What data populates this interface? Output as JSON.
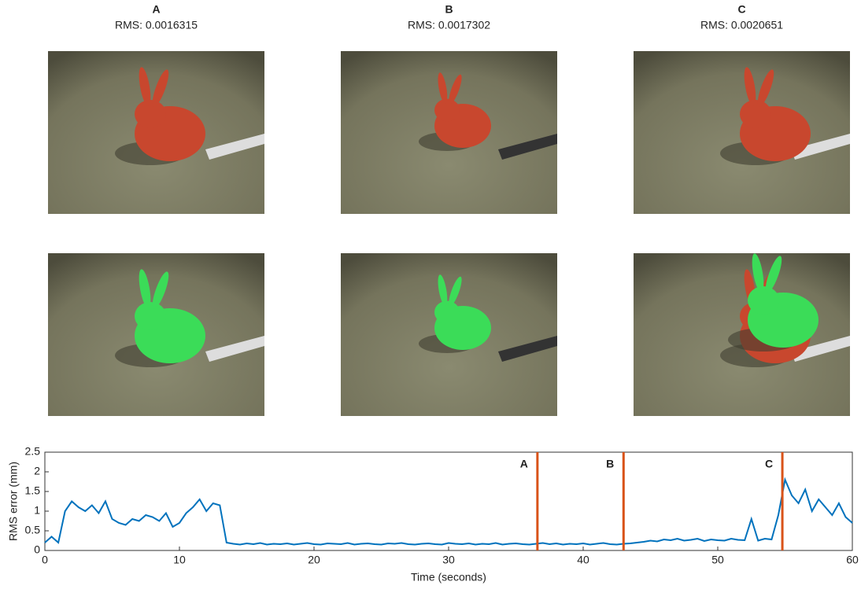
{
  "panels": [
    {
      "label": "A",
      "rms": "RMS: 0.0016315"
    },
    {
      "label": "B",
      "rms": "RMS: 0.0017302"
    },
    {
      "label": "C",
      "rms": "RMS: 0.0020651"
    }
  ],
  "chart_data": {
    "type": "line",
    "x_label": "Time (seconds)",
    "y_label": "RMS error (mm)",
    "xlim": [
      0,
      60
    ],
    "xticks": [
      0,
      10,
      20,
      30,
      40,
      50,
      60
    ],
    "ylim": [
      0,
      2.5
    ],
    "yticks": [
      0,
      0.5,
      1,
      1.5,
      2,
      2.5
    ],
    "x": [
      0,
      0.5,
      1,
      1.5,
      2,
      2.5,
      3,
      3.5,
      4,
      4.5,
      5,
      5.5,
      6,
      6.5,
      7,
      7.5,
      8,
      8.5,
      9,
      9.5,
      10,
      10.5,
      11,
      11.5,
      12,
      12.5,
      13,
      13.5,
      14,
      14.5,
      15,
      15.5,
      16,
      16.5,
      17,
      17.5,
      18,
      18.5,
      19,
      19.5,
      20,
      20.5,
      21,
      21.5,
      22,
      22.5,
      23,
      23.5,
      24,
      24.5,
      25,
      25.5,
      26,
      26.5,
      27,
      27.5,
      28,
      28.5,
      29,
      29.5,
      30,
      30.5,
      31,
      31.5,
      32,
      32.5,
      33,
      33.5,
      34,
      34.5,
      35,
      35.5,
      36,
      36.5,
      37,
      37.5,
      38,
      38.5,
      39,
      39.5,
      40,
      40.5,
      41,
      41.5,
      42,
      42.5,
      43,
      43.5,
      44,
      44.5,
      45,
      45.5,
      46,
      46.5,
      47,
      47.5,
      48,
      48.5,
      49,
      49.5,
      50,
      50.5,
      51,
      51.5,
      52,
      52.5,
      53,
      53.5,
      54,
      54.5,
      55,
      55.5,
      56,
      56.5,
      57,
      57.5,
      58,
      58.5,
      59,
      59.5,
      60
    ],
    "series": [
      {
        "color": "#0072bd",
        "values": [
          0.2,
          0.35,
          0.2,
          1.0,
          1.25,
          1.1,
          1.0,
          1.15,
          0.95,
          1.25,
          0.8,
          0.7,
          0.65,
          0.8,
          0.75,
          0.9,
          0.85,
          0.75,
          0.95,
          0.6,
          0.7,
          0.95,
          1.1,
          1.3,
          1.0,
          1.2,
          1.15,
          0.2,
          0.17,
          0.15,
          0.18,
          0.16,
          0.19,
          0.15,
          0.17,
          0.16,
          0.18,
          0.15,
          0.17,
          0.19,
          0.16,
          0.15,
          0.18,
          0.17,
          0.16,
          0.19,
          0.15,
          0.17,
          0.18,
          0.16,
          0.15,
          0.18,
          0.17,
          0.19,
          0.16,
          0.15,
          0.17,
          0.18,
          0.16,
          0.15,
          0.19,
          0.17,
          0.16,
          0.18,
          0.15,
          0.17,
          0.16,
          0.19,
          0.15,
          0.17,
          0.18,
          0.16,
          0.15,
          0.17,
          0.19,
          0.16,
          0.18,
          0.15,
          0.17,
          0.16,
          0.18,
          0.15,
          0.17,
          0.19,
          0.16,
          0.15,
          0.17,
          0.18,
          0.2,
          0.22,
          0.25,
          0.23,
          0.28,
          0.26,
          0.3,
          0.25,
          0.27,
          0.3,
          0.24,
          0.28,
          0.26,
          0.25,
          0.3,
          0.27,
          0.26,
          0.8,
          0.25,
          0.3,
          0.28,
          0.9,
          1.8,
          1.4,
          1.2,
          1.55,
          1.0,
          1.3,
          1.1,
          0.9,
          1.2,
          0.85,
          0.7
        ]
      }
    ],
    "markers": [
      {
        "label": "A",
        "x": 36.6
      },
      {
        "label": "B",
        "x": 43
      },
      {
        "label": "C",
        "x": 54.8
      }
    ],
    "marker_color": "#d95319"
  }
}
